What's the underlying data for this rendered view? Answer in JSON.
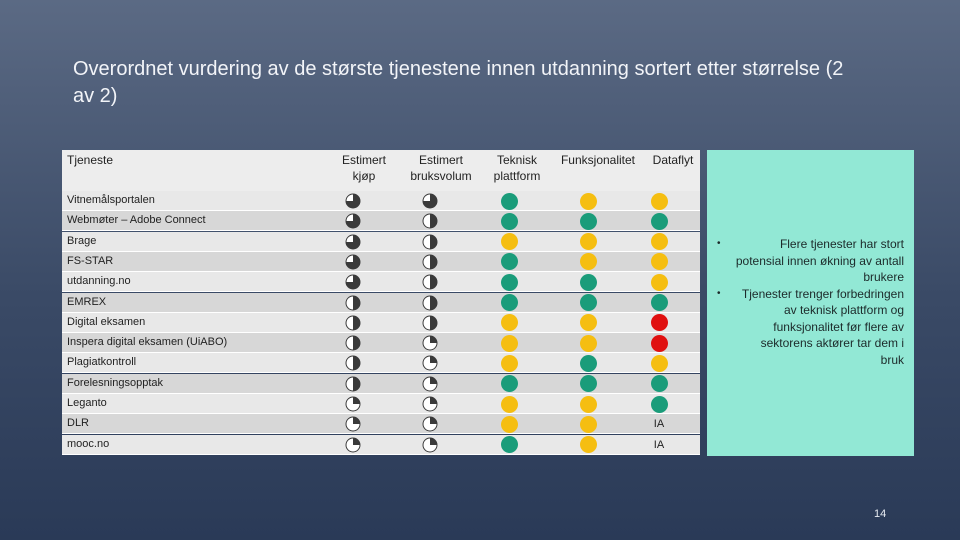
{
  "slide": {
    "title": "Overordnet vurdering av de største tjenestene innen utdanning sortert etter størrelse (2 av 2)",
    "page_number": "14"
  },
  "table": {
    "headers": {
      "service": "Tjeneste",
      "purchase": "Estimert kjøp",
      "usage": "Estimert bruksvolum",
      "platform": "Teknisk plattform",
      "functionality": "Funksjonalitet",
      "dataflow": "Dataflyt"
    },
    "colors": {
      "green": "#1a9c7a",
      "yellow": "#f5be11",
      "red": "#e01010"
    },
    "rows": [
      {
        "name": "Vitnemålsportalen",
        "purchase": 0.75,
        "usage": 0.75,
        "platform": "green",
        "functionality": "yellow",
        "dataflow": "yellow"
      },
      {
        "name": "Webmøter – Adobe Connect",
        "purchase": 0.75,
        "usage": 0.5,
        "platform": "green",
        "functionality": "green",
        "dataflow": "green"
      },
      {
        "name": "Brage",
        "purchase": 0.75,
        "usage": 0.5,
        "platform": "yellow",
        "functionality": "yellow",
        "dataflow": "yellow"
      },
      {
        "name": "FS-STAR",
        "purchase": 0.75,
        "usage": 0.5,
        "platform": "green",
        "functionality": "yellow",
        "dataflow": "yellow"
      },
      {
        "name": "utdanning.no",
        "purchase": 0.75,
        "usage": 0.5,
        "platform": "green",
        "functionality": "green",
        "dataflow": "yellow"
      },
      {
        "name": "EMREX",
        "purchase": 0.5,
        "usage": 0.5,
        "platform": "green",
        "functionality": "green",
        "dataflow": "green"
      },
      {
        "name": "Digital eksamen",
        "purchase": 0.5,
        "usage": 0.5,
        "platform": "yellow",
        "functionality": "yellow",
        "dataflow": "red"
      },
      {
        "name": "Inspera digital eksamen (UiABO)",
        "purchase": 0.5,
        "usage": 0.25,
        "platform": "yellow",
        "functionality": "yellow",
        "dataflow": "red"
      },
      {
        "name": "Plagiatkontroll",
        "purchase": 0.5,
        "usage": 0.25,
        "platform": "yellow",
        "functionality": "green",
        "dataflow": "yellow"
      },
      {
        "name": "Forelesningsopptak",
        "purchase": 0.5,
        "usage": 0.25,
        "platform": "green",
        "functionality": "green",
        "dataflow": "green"
      },
      {
        "name": "Leganto",
        "purchase": 0.25,
        "usage": 0.25,
        "platform": "yellow",
        "functionality": "yellow",
        "dataflow": "green"
      },
      {
        "name": "DLR",
        "purchase": 0.25,
        "usage": 0.25,
        "platform": "yellow",
        "functionality": "yellow",
        "dataflow": "IA"
      },
      {
        "name": "mooc.no",
        "purchase": 0.25,
        "usage": 0.25,
        "platform": "green",
        "functionality": "yellow",
        "dataflow": "IA"
      }
    ]
  },
  "notes": {
    "bullet_symbol": "•",
    "items": [
      "Flere tjenester har stort potensial innen økning av antall brukere",
      "Tjenester trenger forbedringen av teknisk plattform og funksjonalitet før flere av sektorens aktører tar dem i bruk"
    ]
  }
}
